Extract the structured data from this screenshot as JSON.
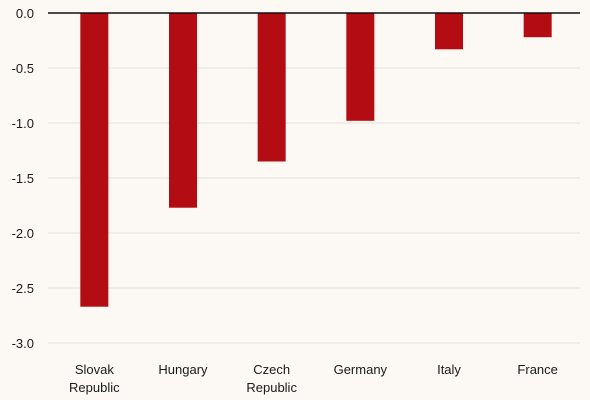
{
  "chart_data": {
    "type": "bar",
    "categories": [
      [
        "Slovak",
        "Republic"
      ],
      [
        "Hungary"
      ],
      [
        "Czech",
        "Republic"
      ],
      [
        "Germany"
      ],
      [
        "Italy"
      ],
      [
        "France"
      ]
    ],
    "values": [
      -2.67,
      -1.77,
      -1.35,
      -0.98,
      -0.33,
      -0.22
    ],
    "ylim": [
      -3.0,
      0.0
    ],
    "yticks": [
      0.0,
      -0.5,
      -1.0,
      -1.5,
      -2.0,
      -2.5,
      -3.0
    ],
    "ytick_labels": [
      "0.0",
      "-0.5",
      "-1.0",
      "-1.5",
      "-2.0",
      "-2.5",
      "-3.0"
    ],
    "grid": true,
    "legend": "none",
    "colors": {
      "bar": "#b30c12",
      "background": "#fcf9f5",
      "grid": "#e4e0d9",
      "axis": "#111111"
    }
  }
}
